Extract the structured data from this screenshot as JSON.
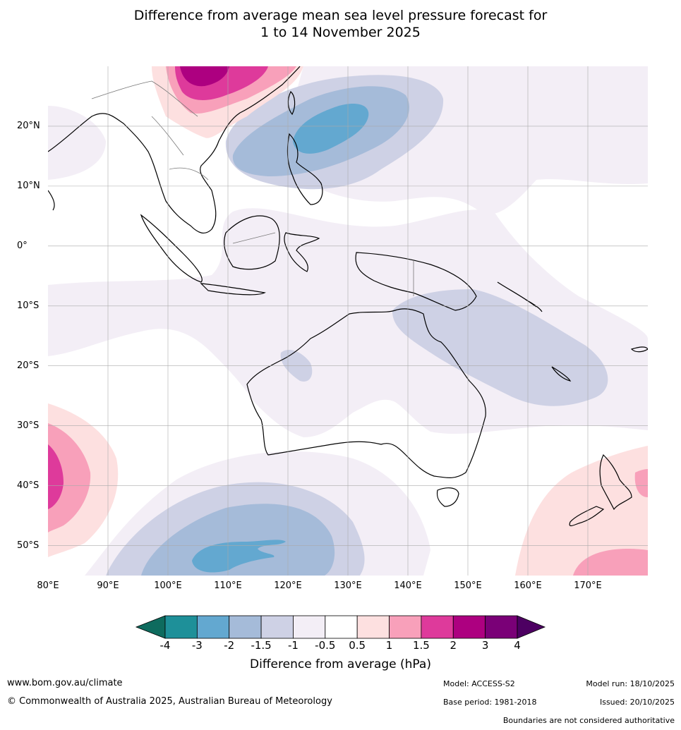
{
  "title": {
    "line1": "Difference from average mean sea level pressure forecast for",
    "line2": "1 to 14 November 2025"
  },
  "map": {
    "lat_labels": [
      "20°N",
      "10°N",
      "0°",
      "10°S",
      "20°S",
      "30°S",
      "40°S",
      "50°S"
    ],
    "lon_labels": [
      "80°E",
      "90°E",
      "100°E",
      "110°E",
      "120°E",
      "130°E",
      "140°E",
      "150°E",
      "160°E",
      "170°E"
    ],
    "lat_range": [
      -55,
      30
    ],
    "lon_range": [
      80,
      180
    ]
  },
  "colorbar": {
    "ticks": [
      "-4",
      "-3",
      "-2",
      "-1.5",
      "-1",
      "-0.5",
      "0.5",
      "1",
      "1.5",
      "2",
      "3",
      "4"
    ],
    "colors": [
      "#0e6b5e",
      "#1e9099",
      "#63a8d0",
      "#a5bbd9",
      "#ced1e5",
      "#f3eef6",
      "#ffffff",
      "#fde0e0",
      "#f8a0ba",
      "#de3a9b",
      "#ad0080",
      "#7a0077",
      "#4d0062"
    ],
    "label": "Difference from average (hPa)"
  },
  "footer": {
    "website": "www.bom.gov.au/climate",
    "copyright": "© Commonwealth of Australia 2025, Australian Bureau of Meteorology",
    "model": "Model: ACCESS-S2",
    "base_period": "Base period: 1981-2018",
    "model_run": "Model run: 18/10/2025",
    "issued": "Issued: 20/10/2025",
    "disclaimer": "Boundaries are not considered authoritative"
  }
}
